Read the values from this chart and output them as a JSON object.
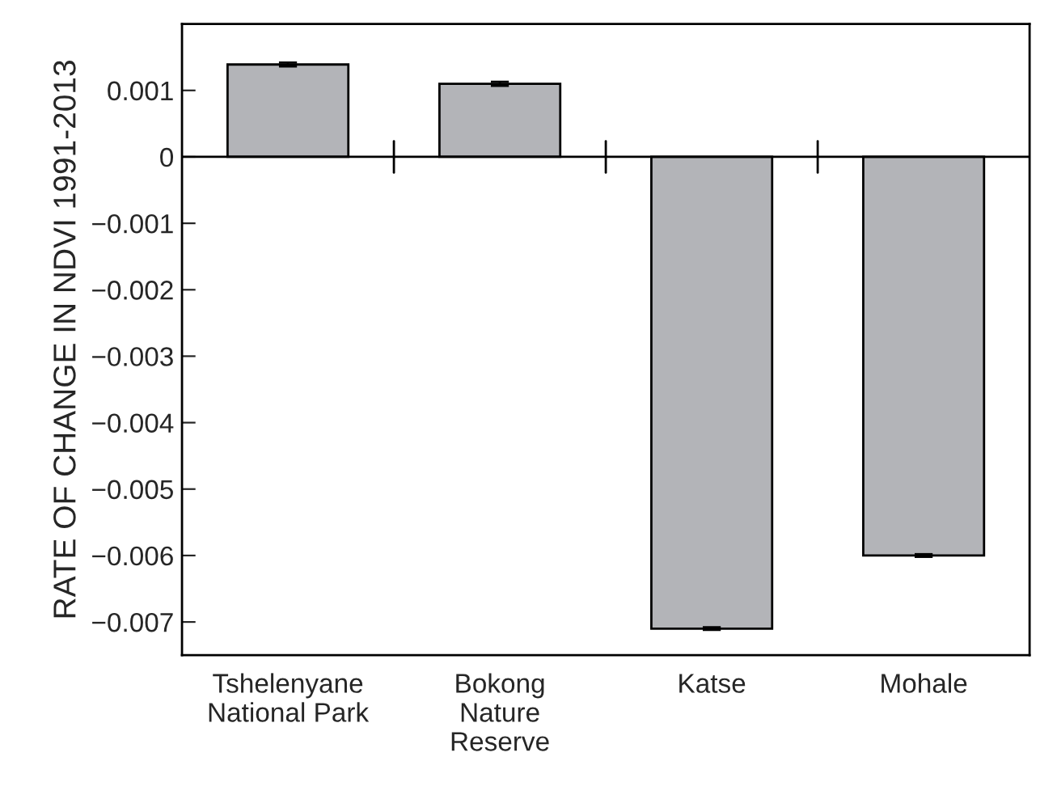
{
  "chart_data": {
    "type": "bar",
    "ylabel": "RATE OF CHANGE IN NDVI 1991-2013",
    "categories": [
      "Tshelenyane\nNational Park",
      "Bokong\nNature\nReserve",
      "Katse",
      "Mohale"
    ],
    "values": [
      0.00139,
      0.0011,
      -0.0071,
      -0.006
    ],
    "errors": [
      3e-05,
      3e-05,
      2e-05,
      2e-05
    ],
    "color": "#b3b4b8",
    "ylim": [
      -0.0075,
      0.002
    ],
    "yticks": [
      {
        "value": 0.001,
        "label": "0.001"
      },
      0,
      {
        "value": -0.001,
        "label": "−0.001"
      },
      {
        "value": -0.002,
        "label": "−0.002"
      },
      {
        "value": -0.003,
        "label": "−0.003"
      },
      {
        "value": -0.004,
        "label": "−0.004"
      },
      {
        "value": -0.005,
        "label": "−0.005"
      },
      {
        "value": -0.006,
        "label": "−0.006"
      },
      {
        "value": -0.007,
        "label": "−0.007"
      }
    ],
    "ref_lines": [
      {
        "axis": "y",
        "value": 0,
        "color": "#000000"
      }
    ],
    "grid": false
  }
}
